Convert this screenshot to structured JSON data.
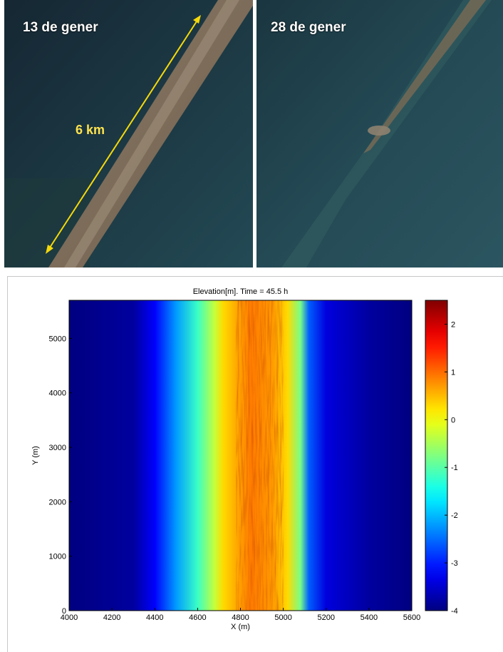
{
  "photos": {
    "left_label": "13 de gener",
    "right_label": "28 de gener",
    "scale_label": "6 km",
    "scale_color": "#f5d90a"
  },
  "chart_data": {
    "type": "heatmap",
    "title": "Elevation[m]. Time = 45.5 h",
    "xlabel": "X (m)",
    "ylabel": "Y (m)",
    "xlim": [
      4000,
      5600
    ],
    "ylim": [
      0,
      5700
    ],
    "x_ticks": [
      4000,
      4200,
      4400,
      4600,
      4800,
      5000,
      5200,
      5400,
      5600
    ],
    "y_ticks": [
      0,
      1000,
      2000,
      3000,
      4000,
      5000
    ],
    "colorbar": {
      "range": [
        -4,
        2.5
      ],
      "ticks": [
        2,
        1,
        0,
        -1,
        -2,
        -3,
        -4
      ],
      "colormap": "jet"
    },
    "profile": {
      "x": [
        4000,
        4300,
        4400,
        4500,
        4600,
        4680,
        4720,
        4780,
        4850,
        4950,
        5020,
        5080,
        5120,
        5200,
        5400,
        5600
      ],
      "z": [
        -4,
        -3.8,
        -3.2,
        -2.2,
        -1.2,
        -0.3,
        0.3,
        0.6,
        0.9,
        0.7,
        0.3,
        -0.8,
        -2.6,
        -3.4,
        -3.8,
        -4
      ]
    },
    "grid": false
  }
}
